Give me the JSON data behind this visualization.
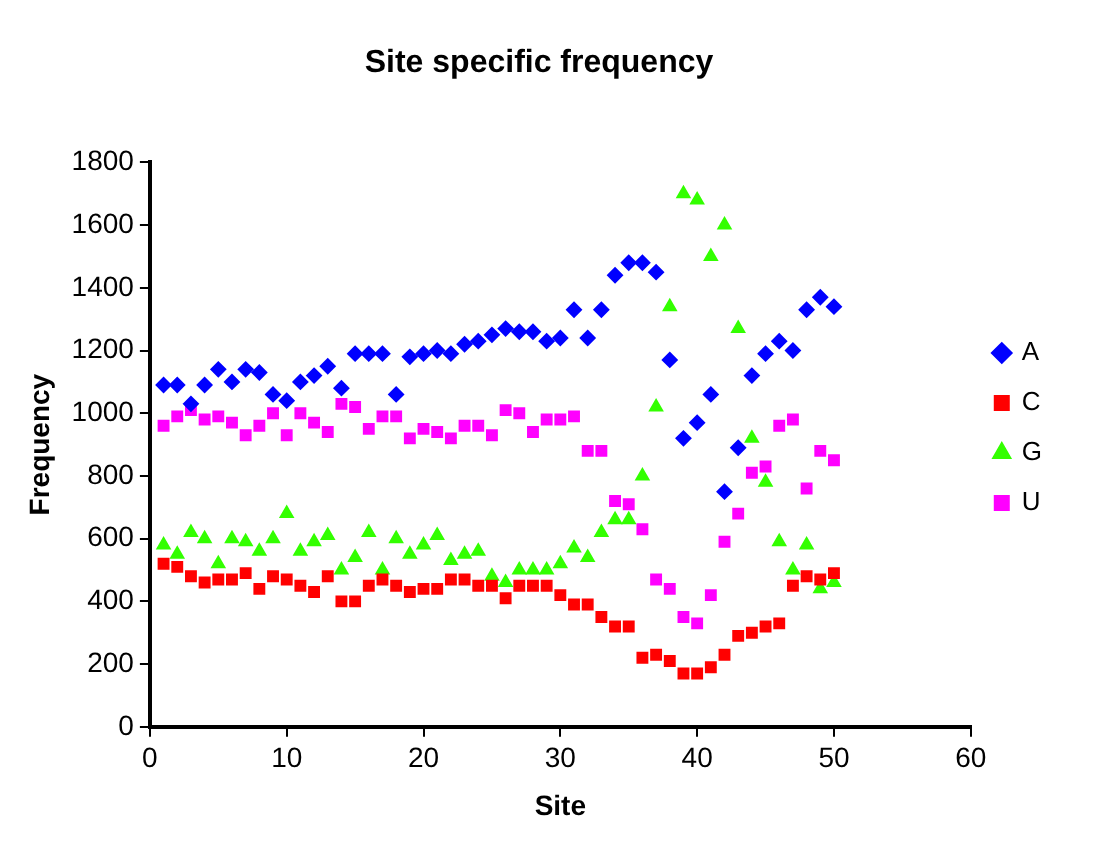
{
  "chart_data": {
    "type": "scatter",
    "title": "Site specific frequency",
    "xlabel": "Site",
    "ylabel": "Frequency",
    "xlim": [
      0,
      60
    ],
    "xticks": [
      0,
      10,
      20,
      30,
      40,
      50,
      60
    ],
    "ylim": [
      0,
      1800
    ],
    "yticks": [
      0,
      200,
      400,
      600,
      800,
      1000,
      1200,
      1400,
      1600,
      1800
    ],
    "grid": false,
    "legend": "right",
    "x": [
      1,
      2,
      3,
      4,
      5,
      6,
      7,
      8,
      9,
      10,
      11,
      12,
      13,
      14,
      15,
      16,
      17,
      18,
      19,
      20,
      21,
      22,
      23,
      24,
      25,
      26,
      27,
      28,
      29,
      30,
      31,
      32,
      33,
      34,
      35,
      36,
      37,
      38,
      39,
      40,
      41,
      42,
      43,
      44,
      45,
      46,
      47,
      48,
      49,
      50
    ],
    "series": [
      {
        "name": "A",
        "color": "#0000ff",
        "marker": "diamond",
        "values": [
          1090,
          1090,
          1030,
          1090,
          1140,
          1100,
          1140,
          1130,
          1060,
          1040,
          1100,
          1120,
          1150,
          1080,
          1190,
          1190,
          1190,
          1060,
          1180,
          1190,
          1200,
          1190,
          1220,
          1230,
          1250,
          1270,
          1260,
          1260,
          1230,
          1240,
          1330,
          1240,
          1330,
          1440,
          1480,
          1480,
          1450,
          1170,
          920,
          970,
          1060,
          750,
          890,
          1120,
          1190,
          1230,
          1200,
          1330,
          1370,
          1340
        ]
      },
      {
        "name": "C",
        "color": "#ff0000",
        "marker": "square",
        "values": [
          520,
          510,
          480,
          460,
          470,
          470,
          490,
          440,
          480,
          470,
          450,
          430,
          480,
          400,
          400,
          450,
          470,
          450,
          430,
          440,
          440,
          470,
          470,
          450,
          450,
          410,
          450,
          450,
          450,
          420,
          390,
          390,
          350,
          320,
          320,
          220,
          230,
          210,
          170,
          170,
          190,
          230,
          290,
          300,
          320,
          330,
          450,
          480,
          470,
          490
        ]
      },
      {
        "name": "G",
        "color": "#33ff00",
        "marker": "triangle",
        "values": [
          580,
          550,
          620,
          600,
          520,
          600,
          590,
          560,
          600,
          680,
          560,
          590,
          610,
          500,
          540,
          620,
          500,
          600,
          550,
          580,
          610,
          530,
          550,
          560,
          480,
          460,
          500,
          500,
          500,
          520,
          570,
          540,
          620,
          660,
          660,
          800,
          1020,
          1340,
          1700,
          1680,
          1500,
          1600,
          1270,
          920,
          780,
          590,
          500,
          580,
          440,
          460
        ]
      },
      {
        "name": "U",
        "color": "#ff00ff",
        "marker": "square",
        "values": [
          960,
          990,
          1010,
          980,
          990,
          970,
          930,
          960,
          1000,
          930,
          1000,
          970,
          940,
          1030,
          1020,
          950,
          990,
          990,
          920,
          950,
          940,
          920,
          960,
          960,
          930,
          1010,
          1000,
          940,
          980,
          980,
          990,
          880,
          880,
          720,
          710,
          630,
          470,
          440,
          350,
          330,
          420,
          590,
          680,
          810,
          830,
          960,
          980,
          760,
          880,
          850
        ]
      }
    ]
  }
}
